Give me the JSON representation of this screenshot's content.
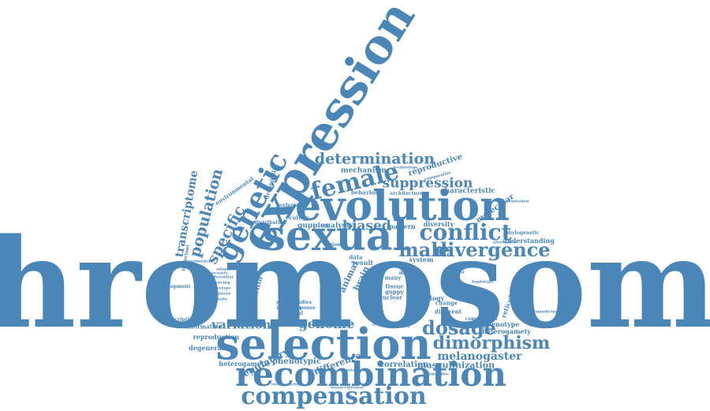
{
  "color": "#4a86b8",
  "words": [
    {
      "id": "chromosome",
      "text": "chromosome"
    },
    {
      "id": "expression",
      "text": "expression"
    },
    {
      "id": "evolution",
      "text": "evolution"
    },
    {
      "id": "sexual",
      "text": "sexual"
    },
    {
      "id": "selection",
      "text": "selection"
    },
    {
      "id": "recombination",
      "text": "recombination"
    },
    {
      "id": "compensation",
      "text": "compensation"
    },
    {
      "id": "genetic",
      "text": "genetic"
    },
    {
      "id": "female",
      "text": "female"
    },
    {
      "id": "conflict",
      "text": "conflict"
    },
    {
      "id": "male",
      "text": "male"
    },
    {
      "id": "divergence",
      "text": "divergence"
    },
    {
      "id": "dosage",
      "text": "dosage"
    },
    {
      "id": "dimorphism",
      "text": "dimorphism"
    },
    {
      "id": "determination",
      "text": "determination"
    },
    {
      "id": "suppression",
      "text": "suppression"
    },
    {
      "id": "biased",
      "text": "biased"
    },
    {
      "id": "population",
      "text": "population"
    },
    {
      "id": "specific",
      "text": "specific"
    },
    {
      "id": "transcriptome",
      "text": "transcriptome"
    },
    {
      "id": "variation",
      "text": "variation"
    },
    {
      "id": "genome",
      "text": "genome"
    },
    {
      "id": "melanogaster",
      "text": "melanogaster"
    },
    {
      "id": "masculinization",
      "text": "masculinization"
    },
    {
      "id": "regulatory",
      "text": "regulatory"
    },
    {
      "id": "phenotypic",
      "text": "phenotypic"
    },
    {
      "id": "difference",
      "text": "difference"
    },
    {
      "id": "correlation",
      "text": "correlation"
    },
    {
      "id": "heterogametic",
      "text": "heterogametic"
    },
    {
      "id": "degeneration",
      "text": "degeneration"
    },
    {
      "id": "reproduction",
      "text": "reproduction"
    },
    {
      "id": "information",
      "text": "information"
    },
    {
      "id": "transcription",
      "text": "transcription"
    },
    {
      "id": "development",
      "text": "development"
    },
    {
      "id": "poecilia",
      "text": "poecilia"
    },
    {
      "id": "animal",
      "text": "animal"
    },
    {
      "id": "brain",
      "text": "brain"
    },
    {
      "id": "science",
      "text": "science"
    },
    {
      "id": "sequence",
      "text": "sequence"
    },
    {
      "id": "phenotype",
      "text": "phenotype"
    },
    {
      "id": "heterogamety",
      "text": "heterogamety"
    },
    {
      "id": "competition",
      "text": "competition"
    },
    {
      "id": "change",
      "text": "change"
    },
    {
      "id": "different",
      "text": "different"
    },
    {
      "id": "biology",
      "text": "biology"
    },
    {
      "id": "nuclear",
      "text": "nuclear"
    },
    {
      "id": "guppy",
      "text": "guppy"
    },
    {
      "id": "tissue",
      "text": "tissue"
    },
    {
      "id": "many",
      "text": "many"
    },
    {
      "id": "allele",
      "text": "allele"
    },
    {
      "id": "system",
      "text": "system"
    },
    {
      "id": "data",
      "text": "data"
    },
    {
      "id": "result",
      "text": "result"
    },
    {
      "id": "region",
      "text": "region"
    },
    {
      "id": "studies",
      "text": "studies"
    },
    {
      "id": "response",
      "text": "response"
    },
    {
      "id": "evidence",
      "text": "evidence"
    },
    {
      "id": "inversion",
      "text": "inversion"
    },
    {
      "id": "potential",
      "text": "potential"
    },
    {
      "id": "guppies",
      "text": "guppies"
    },
    {
      "id": "analysis",
      "text": "analysis"
    },
    {
      "id": "pattern",
      "text": "pattern"
    },
    {
      "id": "diversity",
      "text": "diversity"
    },
    {
      "id": "ecology",
      "text": "ecology"
    },
    {
      "id": "distribution",
      "text": "distribution"
    },
    {
      "id": "preference",
      "text": "preference"
    },
    {
      "id": "drosophila",
      "text": "drosophila"
    },
    {
      "id": "environmental",
      "text": "environmental"
    },
    {
      "id": "important",
      "text": "important"
    },
    {
      "id": "behavior",
      "text": "behavior"
    },
    {
      "id": "architecture",
      "text": "architecture"
    },
    {
      "id": "characteristic",
      "text": "characteristic"
    },
    {
      "id": "molecular",
      "text": "molecular"
    },
    {
      "id": "reproductive",
      "text": "reproductive"
    },
    {
      "id": "mechanism",
      "text": "mechanism"
    },
    {
      "id": "technology",
      "text": "technology"
    },
    {
      "id": "comparative",
      "text": "comparative"
    },
    {
      "id": "differentiation",
      "text": "differentiation"
    },
    {
      "id": "understanding",
      "text": "understanding"
    },
    {
      "id": "phylogenetic",
      "text": "phylogenetic"
    },
    {
      "id": "alternative",
      "text": "alternative"
    },
    {
      "id": "biomedicine",
      "text": "biomedicine"
    },
    {
      "id": "reticulata",
      "text": "reticulata"
    },
    {
      "id": "adaptive",
      "text": "adaptive"
    },
    {
      "id": "differential",
      "text": "differential"
    },
    {
      "id": "silencing",
      "text": "silencing"
    },
    {
      "id": "karyotype",
      "text": "karyotype"
    },
    {
      "id": "consistent",
      "text": "consistent"
    },
    {
      "id": "specialty",
      "text": "specialty"
    },
    {
      "id": "ancestry",
      "text": "ancestry"
    },
    {
      "id": "experimental",
      "text": "experimental"
    },
    {
      "id": "resequencing",
      "text": "resequencing"
    },
    {
      "id": "transcriptional",
      "text": "transcriptional"
    },
    {
      "id": "autosomal",
      "text": "autosomal"
    },
    {
      "id": "constraint",
      "text": "constraint"
    },
    {
      "id": "dimorphic",
      "text": "dimorphic"
    },
    {
      "id": "haplotype",
      "text": "haplotype"
    },
    {
      "id": "gonad",
      "text": "gonad"
    },
    {
      "id": "hybrid",
      "text": "hybrid"
    }
  ]
}
